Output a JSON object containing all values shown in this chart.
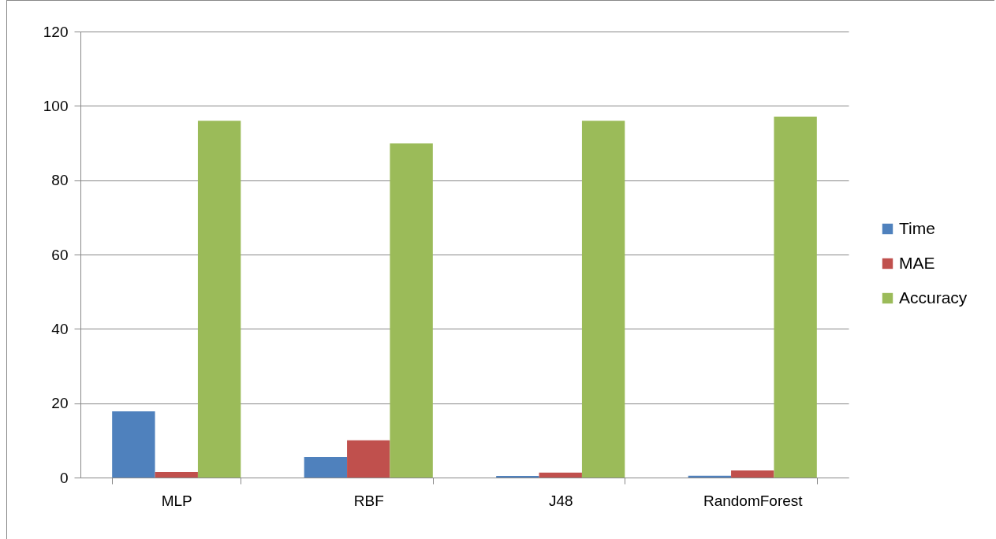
{
  "chart_data": {
    "type": "bar",
    "categories": [
      "MLP",
      "RBF",
      "J48",
      "RandomForest"
    ],
    "series": [
      {
        "name": "Time",
        "color": "#4f81bd",
        "values": [
          17.8,
          5.5,
          0.4,
          0.5
        ]
      },
      {
        "name": "MAE",
        "color": "#c0504d",
        "values": [
          1.5,
          10.0,
          1.3,
          1.9
        ]
      },
      {
        "name": "Accuracy",
        "color": "#9bbb59",
        "values": [
          96.0,
          89.9,
          96.0,
          97.1
        ]
      }
    ],
    "ylim": [
      0,
      120
    ],
    "yticks": [
      0,
      20,
      40,
      60,
      80,
      100,
      120
    ],
    "grid": "y",
    "legend": "right"
  }
}
